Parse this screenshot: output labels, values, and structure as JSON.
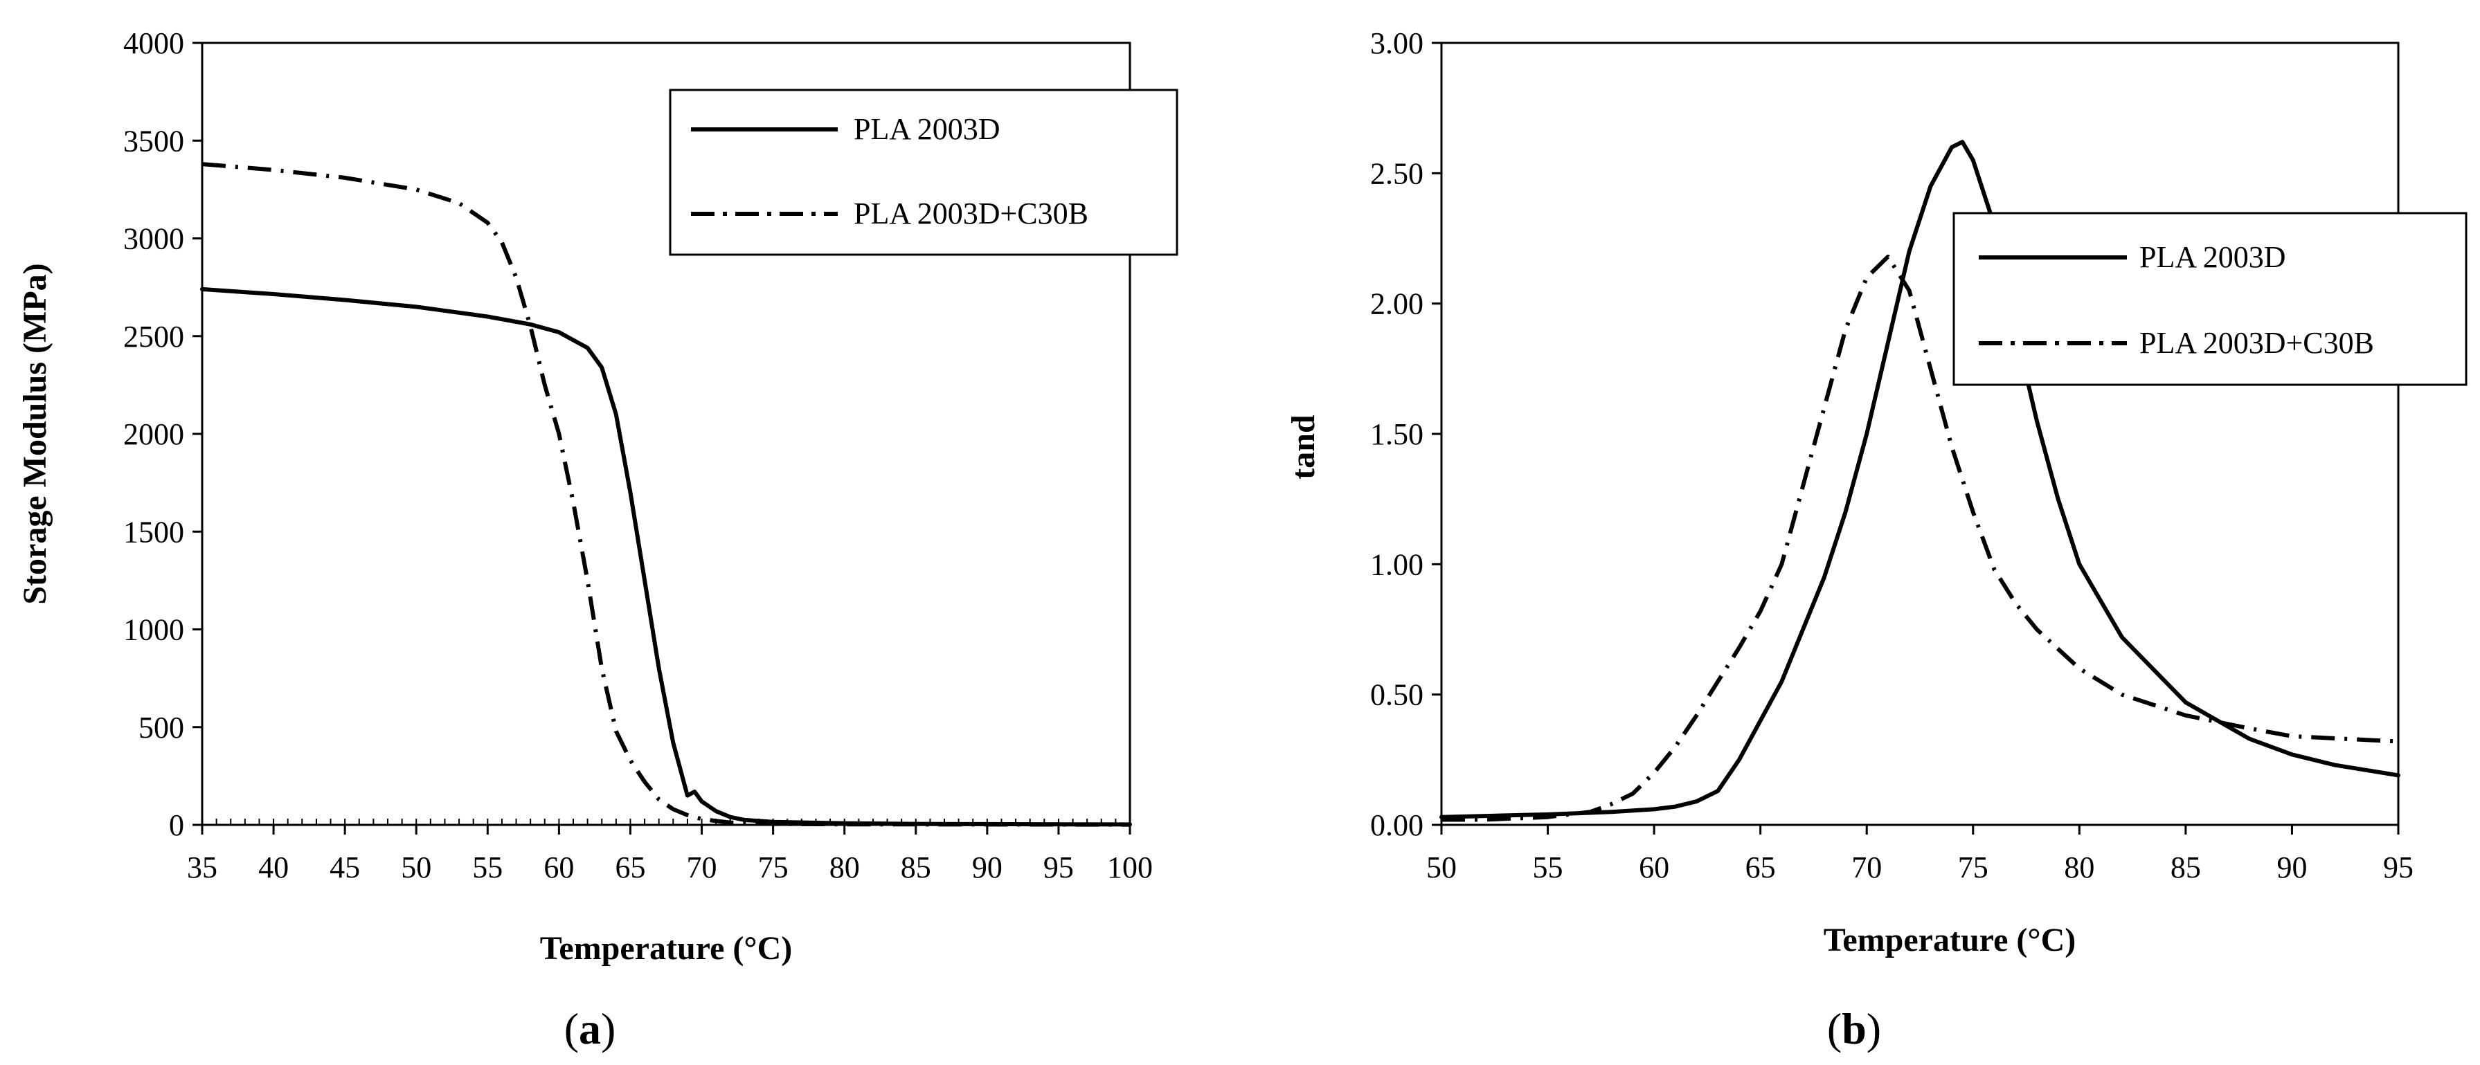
{
  "chart_data": [
    {
      "type": "line",
      "panel_label": "(a)",
      "panel_letter": "a",
      "title": "",
      "xlabel": "Temperature (°C)",
      "ylabel": "Storage Modulus (MPa)",
      "xlim": [
        35,
        100
      ],
      "ylim": [
        0,
        4000
      ],
      "xticks": [
        35,
        40,
        45,
        50,
        55,
        60,
        65,
        70,
        75,
        80,
        85,
        90,
        95,
        100
      ],
      "yticks": [
        0,
        500,
        1000,
        1500,
        2000,
        2500,
        3000,
        3500,
        4000
      ],
      "legend_position": "top-right",
      "series": [
        {
          "name": "PLA 2003D",
          "style": "solid",
          "x": [
            35,
            40,
            45,
            50,
            55,
            58,
            60,
            62,
            63,
            64,
            65,
            66,
            67,
            68,
            69,
            69.5,
            70,
            71,
            72,
            73,
            75,
            80,
            85,
            90,
            95,
            100
          ],
          "y": [
            2740,
            2715,
            2685,
            2650,
            2600,
            2560,
            2520,
            2440,
            2340,
            2100,
            1700,
            1250,
            800,
            420,
            150,
            170,
            120,
            70,
            40,
            25,
            15,
            8,
            5,
            4,
            3,
            2
          ]
        },
        {
          "name": "PLA 2003D+C30B",
          "style": "dash-dot",
          "x": [
            35,
            40,
            45,
            50,
            53,
            55,
            56,
            57,
            58,
            59,
            60,
            61,
            62,
            63,
            64,
            65,
            66,
            67,
            68,
            69,
            70,
            71,
            72,
            75,
            80,
            90,
            100
          ],
          "y": [
            3380,
            3350,
            3310,
            3250,
            3180,
            3080,
            2980,
            2800,
            2550,
            2250,
            2000,
            1650,
            1250,
            800,
            480,
            330,
            220,
            130,
            80,
            50,
            30,
            20,
            12,
            5,
            3,
            2,
            1
          ]
        }
      ]
    },
    {
      "type": "line",
      "panel_label": "(b)",
      "panel_letter": "b",
      "title": "",
      "xlabel": "Temperature (°C)",
      "ylabel": "tand",
      "xlim": [
        50,
        95
      ],
      "ylim": [
        0,
        3
      ],
      "xticks": [
        50,
        55,
        60,
        65,
        70,
        75,
        80,
        85,
        90,
        95
      ],
      "yticks": [
        "0.00",
        "0.50",
        "1.00",
        "1.50",
        "2.00",
        "2.50",
        "3.00"
      ],
      "legend_position": "top-right",
      "series": [
        {
          "name": "PLA 2003D",
          "style": "solid",
          "x": [
            50,
            55,
            58,
            60,
            61,
            62,
            63,
            64,
            65,
            66,
            67,
            68,
            69,
            70,
            71,
            72,
            73,
            74,
            74.5,
            75,
            76,
            77,
            78,
            79,
            80,
            82,
            85,
            88,
            90,
            92,
            95
          ],
          "y": [
            0.03,
            0.04,
            0.05,
            0.06,
            0.07,
            0.09,
            0.13,
            0.25,
            0.4,
            0.55,
            0.75,
            0.95,
            1.2,
            1.5,
            1.85,
            2.2,
            2.45,
            2.6,
            2.62,
            2.55,
            2.3,
            1.9,
            1.55,
            1.25,
            1.0,
            0.72,
            0.47,
            0.33,
            0.27,
            0.23,
            0.19
          ]
        },
        {
          "name": "PLA 2003D+C30B",
          "style": "dash-dot",
          "x": [
            50,
            52,
            55,
            57,
            58,
            59,
            60,
            61,
            62,
            63,
            64,
            65,
            66,
            67,
            68,
            69,
            70,
            71,
            72,
            73,
            74,
            75,
            76,
            77,
            78,
            80,
            82,
            85,
            88,
            90,
            95
          ],
          "y": [
            0.02,
            0.02,
            0.03,
            0.05,
            0.08,
            0.12,
            0.2,
            0.3,
            0.42,
            0.55,
            0.68,
            0.82,
            1.0,
            1.3,
            1.6,
            1.9,
            2.1,
            2.18,
            2.05,
            1.75,
            1.45,
            1.2,
            0.98,
            0.85,
            0.75,
            0.6,
            0.5,
            0.42,
            0.37,
            0.34,
            0.32
          ]
        }
      ]
    }
  ]
}
